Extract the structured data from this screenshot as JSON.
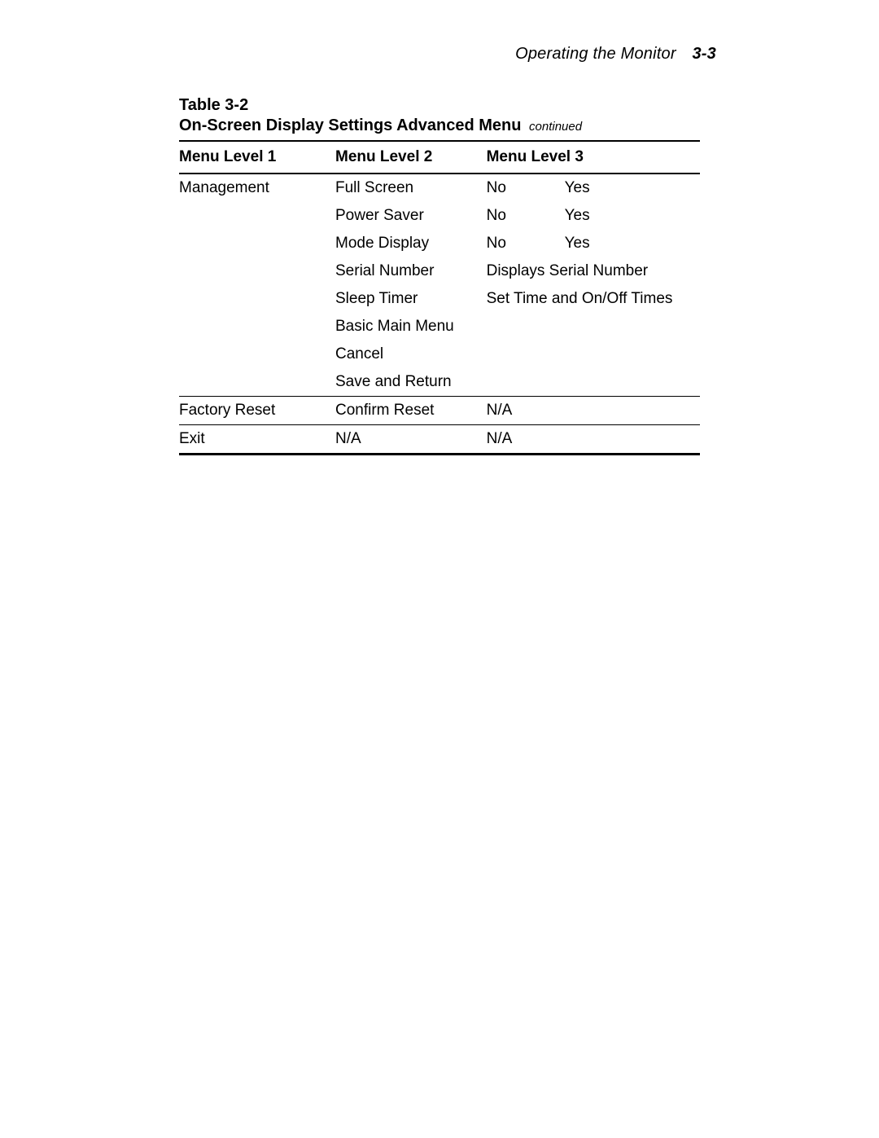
{
  "header": {
    "running_title": "Operating the Monitor",
    "page_number": "3-3"
  },
  "table": {
    "label": "Table 3-2",
    "title": "On-Screen Display Settings Advanced Menu",
    "continued": "continued",
    "columns": {
      "c1": "Menu Level 1",
      "c2": "Menu Level 2",
      "c3": "Menu Level 3"
    },
    "groups": [
      {
        "level1": "Management",
        "rows": [
          {
            "l2": "Full Screen",
            "l3a": "No",
            "l3b": "Yes"
          },
          {
            "l2": "Power Saver",
            "l3a": "No",
            "l3b": "Yes"
          },
          {
            "l2": "Mode Display",
            "l3a": "No",
            "l3b": "Yes"
          },
          {
            "l2": "Serial Number",
            "l3full": "Displays Serial Number"
          },
          {
            "l2": "Sleep Timer",
            "l3full": "Set Time and On/Off Times",
            "l3rowspan": 2
          },
          {
            "l2": "Basic Main Menu"
          },
          {
            "l2": "Cancel"
          },
          {
            "l2": "Save and Return"
          }
        ]
      },
      {
        "level1": "Factory Reset",
        "rows": [
          {
            "l2": "Confirm Reset",
            "l3a": "N/A"
          }
        ]
      },
      {
        "level1": "Exit",
        "rows": [
          {
            "l2": "N/A",
            "l3a": "N/A"
          }
        ]
      }
    ]
  }
}
